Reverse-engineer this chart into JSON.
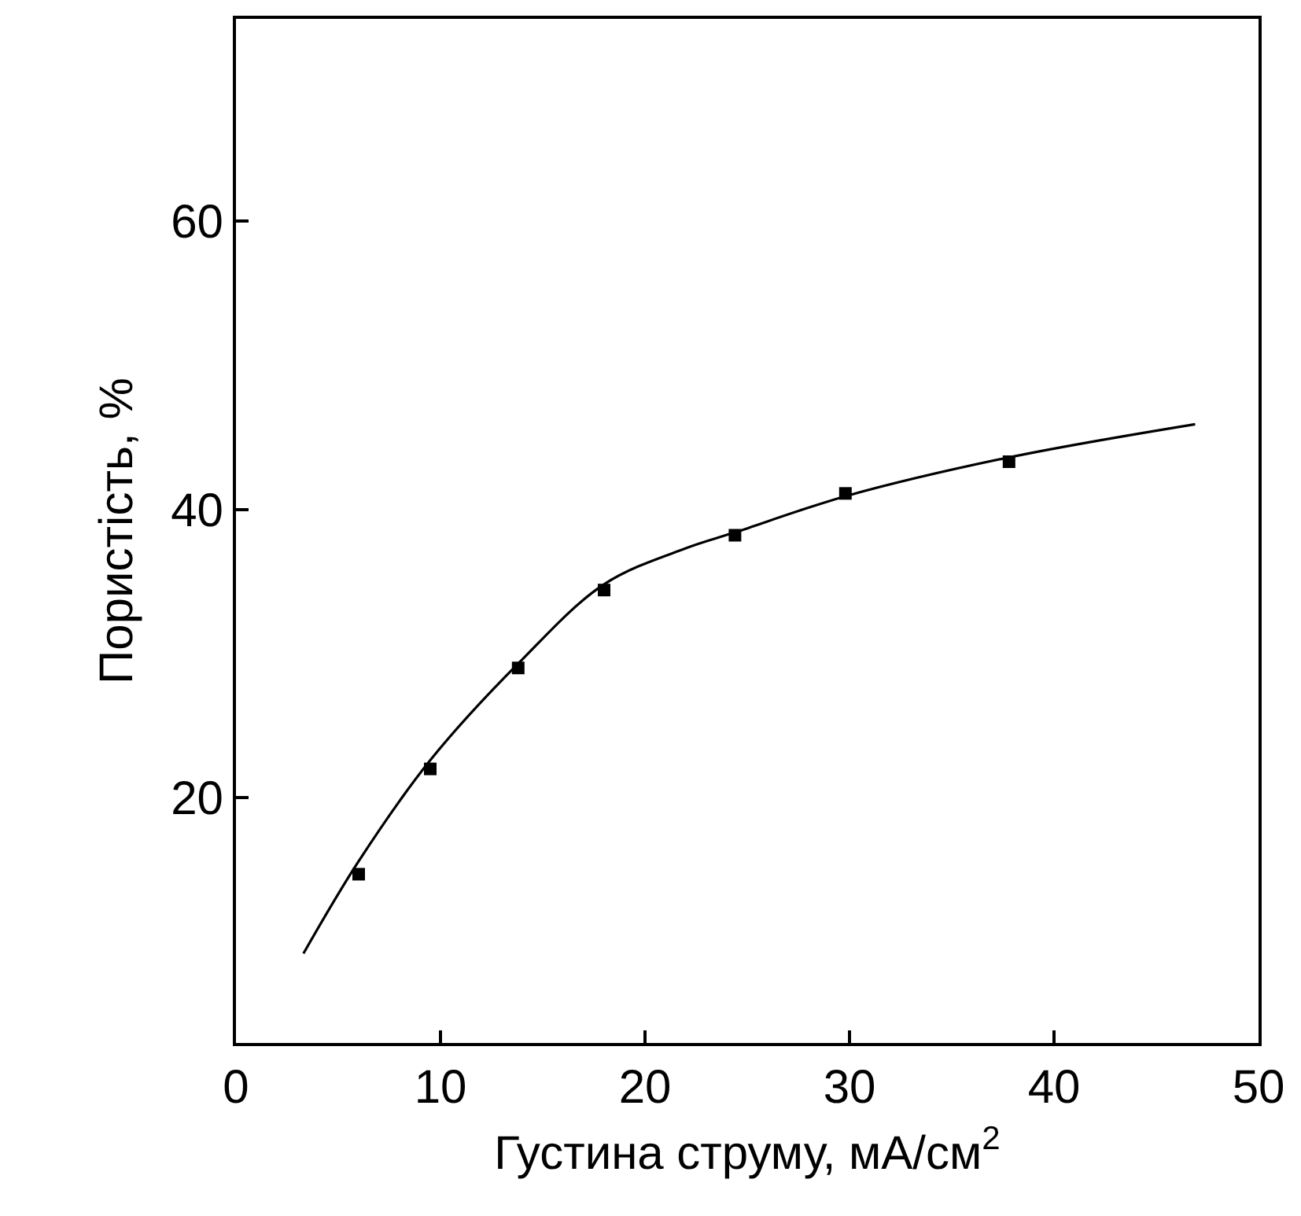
{
  "chart_data": {
    "type": "scatter",
    "xlabel": "Густина струму, мА/см$^{2}$",
    "ylabel": "Пористість, %",
    "xlim": [
      0,
      50
    ],
    "ylim": [
      3,
      74
    ],
    "xticks": [
      0,
      10,
      20,
      30,
      40,
      50
    ],
    "yticks": [
      20,
      40,
      60
    ],
    "series": [
      {
        "color": "#000000",
        "marker": "square",
        "x": [
          6,
          9.5,
          13.8,
          18,
          24.4,
          29.8,
          37.8
        ],
        "values": [
          14.7,
          22.0,
          29.0,
          34.4,
          38.2,
          41.1,
          43.3
        ]
      },
      {
        "type": "line",
        "color": "#000000",
        "marker": "none",
        "line_style": "solid",
        "x": [
          3.3,
          6,
          9.5,
          13.8,
          18,
          22,
          24.4,
          29.8,
          37.8,
          46.9
        ],
        "values": [
          9.2,
          15.6,
          22.6,
          29.3,
          34.8,
          37.3,
          38.4,
          40.9,
          43.6,
          45.9
        ]
      }
    ]
  }
}
